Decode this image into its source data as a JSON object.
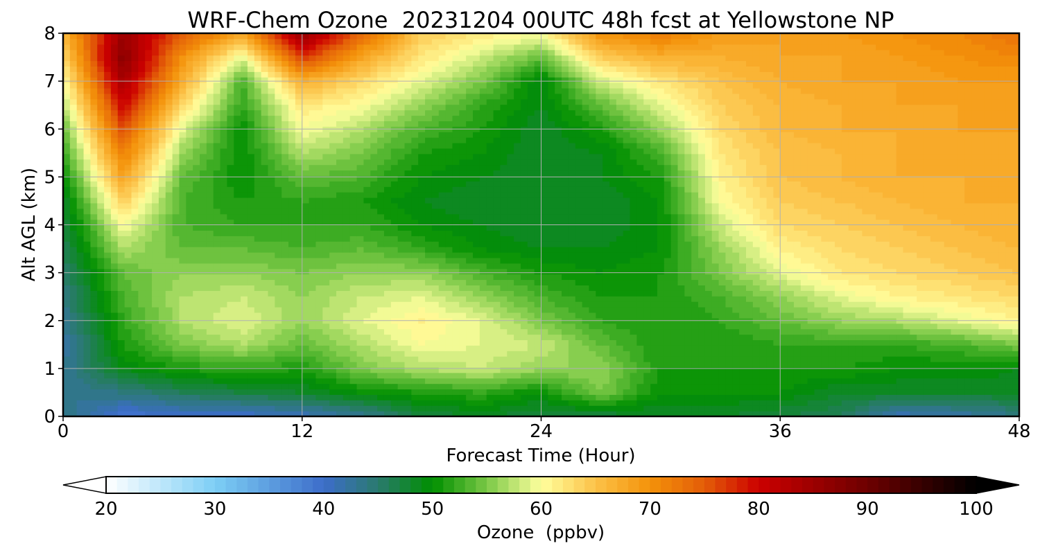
{
  "chart_data": {
    "type": "heatmap",
    "title": "WRF-Chem Ozone  20231204 00UTC 48h fcst at Yellowstone NP",
    "xlabel": "Forecast Time (Hour)",
    "ylabel": "Alt AGL (km)",
    "xlim": [
      0,
      48
    ],
    "ylim": [
      0,
      8
    ],
    "xticks": [
      0,
      12,
      24,
      36,
      48
    ],
    "yticks": [
      0,
      1,
      2,
      3,
      4,
      5,
      6,
      7,
      8
    ],
    "grid": true,
    "variable_unit": "ppbv",
    "x": [
      0,
      3,
      6,
      9,
      12,
      15,
      18,
      21,
      24,
      27,
      30,
      33,
      36,
      39,
      42,
      45,
      48
    ],
    "y": [
      0,
      0.5,
      1,
      1.5,
      2,
      2.5,
      3,
      3.5,
      4,
      4.5,
      5,
      5.5,
      6,
      6.5,
      7,
      7.5,
      8
    ],
    "z": [
      [
        44,
        39,
        40,
        40,
        41,
        43,
        47,
        48,
        47,
        47,
        48,
        48,
        47,
        46,
        41,
        42,
        44
      ],
      [
        43,
        44,
        46,
        47,
        48,
        50,
        51,
        52,
        50,
        55,
        50,
        50,
        50,
        48,
        48,
        48,
        48
      ],
      [
        43,
        49,
        51,
        52,
        51,
        55,
        57,
        58,
        56,
        56,
        51,
        51,
        51,
        51,
        50,
        50,
        49
      ],
      [
        42,
        51,
        55,
        57,
        54,
        57,
        60,
        59,
        58,
        54,
        51,
        51,
        52,
        52,
        52,
        53,
        55
      ],
      [
        43,
        52,
        57,
        59,
        56,
        59,
        61,
        59,
        55,
        52,
        51,
        52,
        54,
        56,
        57,
        59,
        61
      ],
      [
        44,
        53,
        57,
        58,
        56,
        58,
        59,
        56,
        53,
        51,
        51,
        53,
        56,
        59,
        61,
        62,
        63
      ],
      [
        45,
        54,
        56,
        56,
        55,
        56,
        56,
        53,
        51,
        50,
        51,
        55,
        59,
        62,
        63,
        64,
        65
      ],
      [
        46,
        57,
        54,
        54,
        53,
        54,
        52,
        50,
        49,
        49,
        50,
        56,
        61,
        63,
        64,
        65,
        66
      ],
      [
        47,
        60,
        53,
        52,
        52,
        52,
        50,
        49,
        48,
        48,
        50,
        58,
        63,
        64,
        65,
        66,
        67
      ],
      [
        48,
        64,
        53,
        51,
        52,
        51,
        49,
        48,
        48,
        48,
        50,
        60,
        64,
        65,
        66,
        67,
        67
      ],
      [
        50,
        68,
        54,
        50,
        54,
        53,
        50,
        49,
        48,
        49,
        51,
        61,
        65,
        66,
        67,
        67,
        67
      ],
      [
        52,
        72,
        56,
        50,
        57,
        55,
        51,
        50,
        48,
        49,
        53,
        62,
        65,
        66,
        67,
        67,
        68
      ],
      [
        54,
        76,
        59,
        50,
        60,
        57,
        53,
        51,
        48,
        51,
        56,
        63,
        66,
        67,
        67,
        68,
        68
      ],
      [
        57,
        80,
        63,
        52,
        62,
        60,
        56,
        52,
        49,
        54,
        59,
        64,
        66,
        67,
        68,
        68,
        69
      ],
      [
        60,
        84,
        67,
        53,
        67,
        63,
        59,
        55,
        49,
        58,
        62,
        65,
        67,
        68,
        68,
        69,
        69
      ],
      [
        63,
        87,
        70,
        59,
        77,
        68,
        62,
        58,
        54,
        64,
        67,
        67,
        68,
        68,
        69,
        70,
        71
      ],
      [
        66,
        85,
        75,
        68,
        86,
        74,
        64,
        62,
        60,
        70,
        72,
        69,
        68,
        69,
        70,
        71,
        73
      ]
    ],
    "colorbar": {
      "label": "Ozone  (ppbv)",
      "min": 20,
      "max": 100,
      "step": 1,
      "ticks": [
        20,
        30,
        40,
        50,
        60,
        70,
        80,
        90,
        100
      ],
      "extend": "both",
      "color_stops": [
        {
          "value": 20,
          "color": "#ffffff"
        },
        {
          "value": 30,
          "color": "#7dcff5"
        },
        {
          "value": 40,
          "color": "#3d6dca"
        },
        {
          "value": 45,
          "color": "#2a7a6e"
        },
        {
          "value": 50,
          "color": "#008f00"
        },
        {
          "value": 55,
          "color": "#7ac846"
        },
        {
          "value": 60,
          "color": "#ffff9e"
        },
        {
          "value": 65,
          "color": "#fcc248"
        },
        {
          "value": 70,
          "color": "#f4920a"
        },
        {
          "value": 75,
          "color": "#e35d08"
        },
        {
          "value": 80,
          "color": "#cc0000"
        },
        {
          "value": 90,
          "color": "#6d0000"
        },
        {
          "value": 100,
          "color": "#000000"
        }
      ]
    }
  }
}
